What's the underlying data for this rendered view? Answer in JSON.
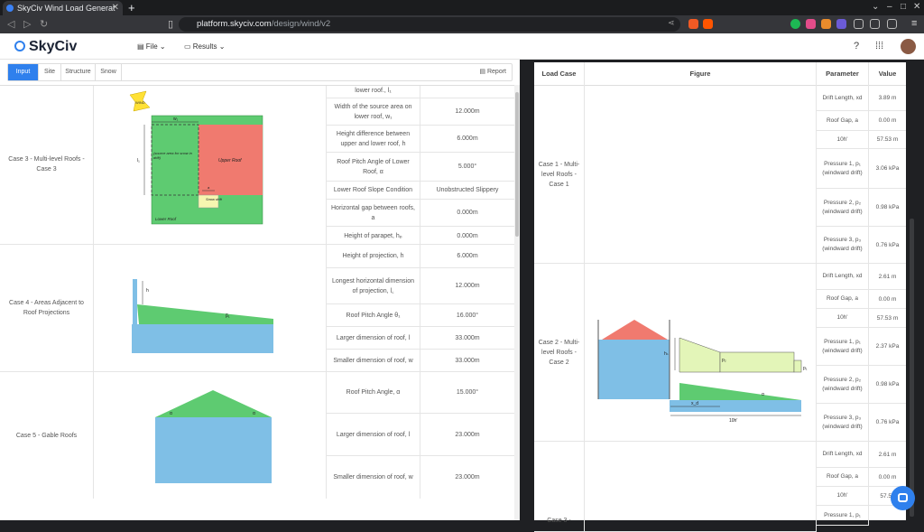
{
  "browser": {
    "tab_title": "SkyCiv Wind Load Generat",
    "url_host": "platform.skyciv.com",
    "url_path": "/design/wind/v2"
  },
  "header": {
    "logo": "SkyCiv",
    "file_menu": "File",
    "results_menu": "Results"
  },
  "subtabs": [
    "Input",
    "Site",
    "Structure",
    "Snow"
  ],
  "report_label": "Report",
  "left_table": {
    "rows": [
      {
        "case": "Case 3 - Multi-level Roofs - Case 3",
        "figure": {
          "wind": "WIND",
          "w1": "w₁",
          "l1": "l₁",
          "source": "(source area for snow in drift)",
          "upper": "Upper Roof",
          "snow_drift": "Snow drift",
          "a": "a",
          "lower": "Lower Roof"
        },
        "params": [
          {
            "label": "lower roof., l₁",
            "value": ""
          },
          {
            "label": "Width of the source area on lower roof, w₁",
            "value": "12.000m"
          },
          {
            "label": "Height difference between upper and lower roof, h",
            "value": "6.000m"
          },
          {
            "label": "Roof Pitch Angle of Lower Roof, α",
            "value": "5.000°"
          },
          {
            "label": "Lower Roof Slope Condition",
            "value": "Unobstructed Slippery"
          },
          {
            "label": "Horizontal gap between roofs, a",
            "value": "0.000m"
          },
          {
            "label": "Height of parapet, hₚ",
            "value": "0.000m"
          }
        ]
      },
      {
        "case": "Case 4 - Areas Adjacent to Roof Projections",
        "figure": {
          "h": "h",
          "angle": "β₁"
        },
        "params": [
          {
            "label": "Height of projection, h",
            "value": "6.000m"
          },
          {
            "label": "Longest horizontal dimension of projection, l꜀",
            "value": "12.000m"
          },
          {
            "label": "Roof Pitch Angle θ₁",
            "value": "16.000°"
          },
          {
            "label": "Larger dimension of roof, l",
            "value": "33.000m"
          },
          {
            "label": "Smaller dimension of roof, w",
            "value": "33.000m"
          }
        ]
      },
      {
        "case": "Case 5 - Gable Roofs",
        "figure": {
          "left_angle": "α",
          "right_angle": "α"
        },
        "params": [
          {
            "label": "Roof Pitch Angle, α",
            "value": "15.000°"
          },
          {
            "label": "Larger dimension of roof, l",
            "value": "23.000m"
          },
          {
            "label": "Smaller dimension of roof, w",
            "value": "23.000m"
          }
        ]
      }
    ]
  },
  "right_table": {
    "headers": {
      "load_case": "Load Case",
      "figure": "Figure",
      "parameter": "Parameter",
      "value": "Value"
    },
    "cases": [
      {
        "name": "Case 1 - Multi-level Roofs - Case 1",
        "rows": [
          {
            "param": "Drift Length, xd",
            "value": "3.89 m"
          },
          {
            "param": "Roof Gap, a",
            "value": "0.00 m"
          },
          {
            "param": "10h'",
            "value": "57.53 m"
          },
          {
            "param": "Pressure 1, p₁ (windward drift)",
            "value": "3.06 kPa"
          },
          {
            "param": "Pressure 2, p₂ (windward drift)",
            "value": "0.98 kPa"
          },
          {
            "param": "Pressure 3, p₃ (windward drift)",
            "value": "0.76 kPa"
          }
        ]
      },
      {
        "name": "Case 2 - Multi-level Roofs - Case 2",
        "figure": {
          "h": "hₛ",
          "p2": "p₂",
          "p1": "p₁",
          "xd": "x_d",
          "alpha": "α",
          "ten_h": "10h'"
        },
        "rows": [
          {
            "param": "Drift Length, xd",
            "value": "2.61 m"
          },
          {
            "param": "Roof Gap, a",
            "value": "0.00 m"
          },
          {
            "param": "10h'",
            "value": "57.53 m"
          },
          {
            "param": "Pressure 1, p₁ (windward drift)",
            "value": "2.37 kPa"
          },
          {
            "param": "Pressure 2, p₂ (windward drift)",
            "value": "0.98 kPa"
          },
          {
            "param": "Pressure 3, p₃ (windward drift)",
            "value": "0.76 kPa"
          }
        ]
      },
      {
        "name": "Case 3 -",
        "rows": [
          {
            "param": "Drift Length, xd",
            "value": "2.61 m"
          },
          {
            "param": "Roof Gap, a",
            "value": "0.00 m"
          },
          {
            "param": "10h'",
            "value": "57.53"
          },
          {
            "param": "Pressure 1, p₁",
            "value": ""
          }
        ]
      }
    ]
  },
  "colors": {
    "accent": "#2f80ed",
    "green": "#5ecb71",
    "red": "#f07a6f",
    "blue": "#7fbfe6",
    "yellow": "#ffe135"
  }
}
